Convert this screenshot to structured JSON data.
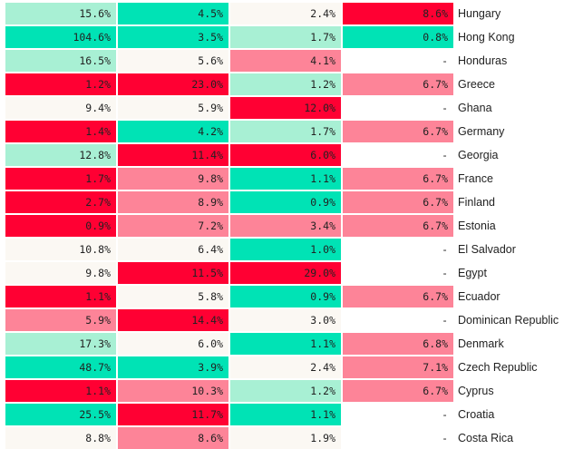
{
  "colors": {
    "high": "#ff0033",
    "mid_high": "#fd8498",
    "neutral": "#fbf8f3",
    "mid_low": "#a8f0d4",
    "low": "#00e3b5",
    "empty": "#ffffff"
  },
  "chart_data": {
    "type": "heatmap",
    "title": "",
    "columns": [
      "",
      "",
      "",
      ""
    ],
    "rows": [
      {
        "country": "Hungary",
        "values": [
          "15.6%",
          "4.5%",
          "2.4%",
          "8.6%"
        ],
        "levels": [
          "mid_low",
          "low",
          "neutral",
          "high"
        ]
      },
      {
        "country": "Hong Kong",
        "values": [
          "104.6%",
          "3.5%",
          "1.7%",
          "0.8%"
        ],
        "levels": [
          "low",
          "low",
          "mid_low",
          "low"
        ]
      },
      {
        "country": "Honduras",
        "values": [
          "16.5%",
          "5.6%",
          "4.1%",
          "-"
        ],
        "levels": [
          "mid_low",
          "neutral",
          "mid_high",
          "empty"
        ]
      },
      {
        "country": "Greece",
        "values": [
          "1.2%",
          "23.0%",
          "1.2%",
          "6.7%"
        ],
        "levels": [
          "high",
          "high",
          "mid_low",
          "mid_high"
        ]
      },
      {
        "country": "Ghana",
        "values": [
          "9.4%",
          "5.9%",
          "12.0%",
          "-"
        ],
        "levels": [
          "neutral",
          "neutral",
          "high",
          "empty"
        ]
      },
      {
        "country": "Germany",
        "values": [
          "1.4%",
          "4.2%",
          "1.7%",
          "6.7%"
        ],
        "levels": [
          "high",
          "low",
          "mid_low",
          "mid_high"
        ]
      },
      {
        "country": "Georgia",
        "values": [
          "12.8%",
          "11.4%",
          "6.0%",
          "-"
        ],
        "levels": [
          "mid_low",
          "high",
          "high",
          "empty"
        ]
      },
      {
        "country": "France",
        "values": [
          "1.7%",
          "9.8%",
          "1.1%",
          "6.7%"
        ],
        "levels": [
          "high",
          "mid_high",
          "low",
          "mid_high"
        ]
      },
      {
        "country": "Finland",
        "values": [
          "2.7%",
          "8.9%",
          "0.9%",
          "6.7%"
        ],
        "levels": [
          "high",
          "mid_high",
          "low",
          "mid_high"
        ]
      },
      {
        "country": "Estonia",
        "values": [
          "0.9%",
          "7.2%",
          "3.4%",
          "6.7%"
        ],
        "levels": [
          "high",
          "mid_high",
          "mid_high",
          "mid_high"
        ]
      },
      {
        "country": "El Salvador",
        "values": [
          "10.8%",
          "6.4%",
          "1.0%",
          "-"
        ],
        "levels": [
          "neutral",
          "neutral",
          "low",
          "empty"
        ]
      },
      {
        "country": "Egypt",
        "values": [
          "9.8%",
          "11.5%",
          "29.0%",
          "-"
        ],
        "levels": [
          "neutral",
          "high",
          "high",
          "empty"
        ]
      },
      {
        "country": "Ecuador",
        "values": [
          "1.1%",
          "5.8%",
          "0.9%",
          "6.7%"
        ],
        "levels": [
          "high",
          "neutral",
          "low",
          "mid_high"
        ]
      },
      {
        "country": "Dominican Republic",
        "values": [
          "5.9%",
          "14.4%",
          "3.0%",
          "-"
        ],
        "levels": [
          "mid_high",
          "high",
          "neutral",
          "empty"
        ]
      },
      {
        "country": "Denmark",
        "values": [
          "17.3%",
          "6.0%",
          "1.1%",
          "6.8%"
        ],
        "levels": [
          "mid_low",
          "neutral",
          "low",
          "mid_high"
        ]
      },
      {
        "country": "Czech Republic",
        "values": [
          "48.7%",
          "3.9%",
          "2.4%",
          "7.1%"
        ],
        "levels": [
          "low",
          "low",
          "neutral",
          "mid_high"
        ]
      },
      {
        "country": "Cyprus",
        "values": [
          "1.1%",
          "10.3%",
          "1.2%",
          "6.7%"
        ],
        "levels": [
          "high",
          "mid_high",
          "mid_low",
          "mid_high"
        ]
      },
      {
        "country": "Croatia",
        "values": [
          "25.5%",
          "11.7%",
          "1.1%",
          "-"
        ],
        "levels": [
          "low",
          "high",
          "low",
          "empty"
        ]
      },
      {
        "country": "Costa Rica",
        "values": [
          "8.8%",
          "8.6%",
          "1.9%",
          "-"
        ],
        "levels": [
          "neutral",
          "mid_high",
          "neutral",
          "empty"
        ]
      }
    ]
  }
}
